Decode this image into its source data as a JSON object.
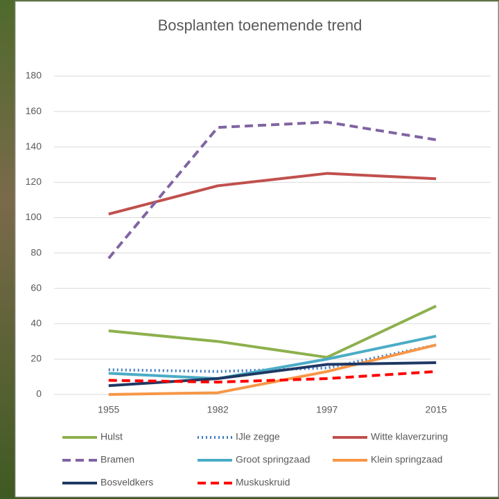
{
  "chart_data": {
    "type": "line",
    "title": "Bosplanten toenemende trend",
    "categories": [
      "1955",
      "1982",
      "1997",
      "2015"
    ],
    "ylim": [
      0,
      180
    ],
    "yticks": [
      0,
      20,
      40,
      60,
      80,
      100,
      120,
      140,
      160,
      180
    ],
    "grid": true,
    "series": [
      {
        "name": "Hulst",
        "color": "#8db04d",
        "dash": "solid",
        "values": [
          36,
          30,
          21,
          50
        ]
      },
      {
        "name": "IJle zegge",
        "color": "#3f7bc1",
        "dash": "dotted",
        "values": [
          14,
          13,
          15,
          28
        ]
      },
      {
        "name": "Witte klaverzuring",
        "color": "#c0504d",
        "dash": "solid",
        "values": [
          102,
          118,
          125,
          122
        ]
      },
      {
        "name": "Bramen",
        "color": "#8064a2",
        "dash": "dashed",
        "values": [
          77,
          151,
          154,
          144
        ]
      },
      {
        "name": "Groot springzaad",
        "color": "#4bacc6",
        "dash": "solid",
        "values": [
          12,
          9,
          20,
          33
        ]
      },
      {
        "name": "Klein springzaad",
        "color": "#f79646",
        "dash": "solid",
        "values": [
          0,
          1,
          13,
          28
        ]
      },
      {
        "name": "Bosveldkers",
        "color": "#1f3864",
        "dash": "solid",
        "values": [
          5,
          9,
          17,
          18
        ]
      },
      {
        "name": "Muskuskruid",
        "color": "#ff0000",
        "dash": "dashed",
        "values": [
          8,
          7,
          9,
          13
        ]
      }
    ]
  }
}
